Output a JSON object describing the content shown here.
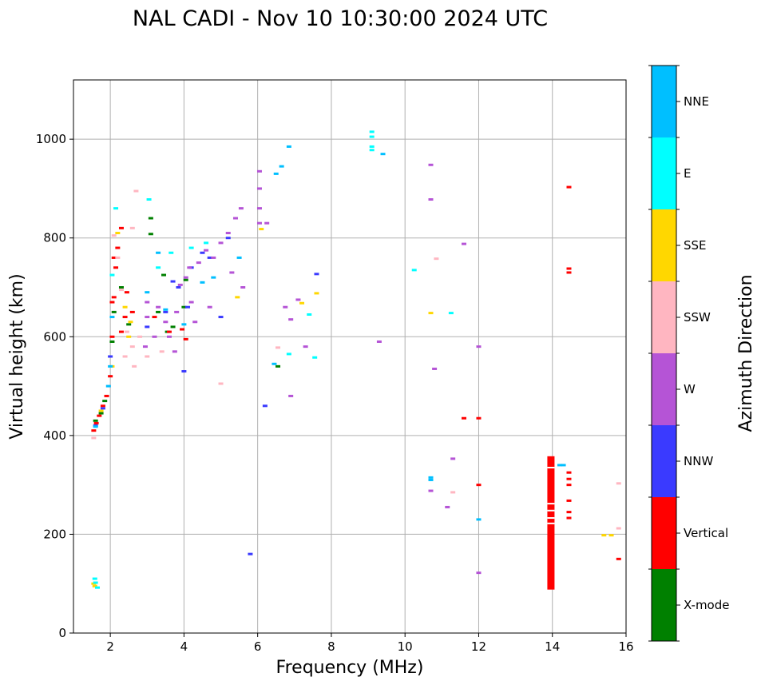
{
  "chart_data": {
    "type": "scatter",
    "title": "NAL CADI - Nov 10 10:30:00 2024 UTC",
    "xlabel": "Frequency (MHz)",
    "ylabel": "Virtual height (km)",
    "xlim": [
      1,
      16
    ],
    "ylim": [
      0,
      1120
    ],
    "xticks": [
      2,
      4,
      6,
      8,
      10,
      12,
      14,
      16
    ],
    "yticks": [
      0,
      200,
      400,
      600,
      800,
      1000
    ],
    "grid": true,
    "colorbar": {
      "label": "Azimuth Direction",
      "categories": [
        {
          "name": "X-mode",
          "color": "#008000"
        },
        {
          "name": "Vertical",
          "color": "#ff0000"
        },
        {
          "name": "NNW",
          "color": "#3a3aff"
        },
        {
          "name": "W",
          "color": "#b554d6"
        },
        {
          "name": "SSW",
          "color": "#ffb6c1"
        },
        {
          "name": "SSE",
          "color": "#ffd700"
        },
        {
          "name": "E",
          "color": "#00ffff"
        },
        {
          "name": "NNE",
          "color": "#00bfff"
        }
      ]
    },
    "series": [
      {
        "name": "X-mode",
        "points": [
          [
            1.6,
            430
          ],
          [
            1.75,
            445
          ],
          [
            1.85,
            470
          ],
          [
            2.05,
            590
          ],
          [
            2.1,
            650
          ],
          [
            2.3,
            700
          ],
          [
            2.5,
            625
          ],
          [
            3.1,
            840
          ],
          [
            3.1,
            808
          ],
          [
            3.3,
            650
          ],
          [
            3.45,
            725
          ],
          [
            3.55,
            610
          ],
          [
            3.7,
            620
          ],
          [
            4.0,
            660
          ],
          [
            4.05,
            715
          ],
          [
            6.55,
            540
          ]
        ]
      },
      {
        "name": "Vertical",
        "points": [
          [
            1.55,
            410
          ],
          [
            1.62,
            425
          ],
          [
            1.7,
            440
          ],
          [
            1.8,
            460
          ],
          [
            1.9,
            480
          ],
          [
            2.0,
            520
          ],
          [
            2.05,
            600
          ],
          [
            2.05,
            670
          ],
          [
            2.1,
            680
          ],
          [
            2.1,
            760
          ],
          [
            2.15,
            740
          ],
          [
            2.2,
            780
          ],
          [
            2.3,
            820
          ],
          [
            2.3,
            610
          ],
          [
            2.4,
            640
          ],
          [
            2.45,
            690
          ],
          [
            2.6,
            650
          ],
          [
            3.2,
            640
          ],
          [
            3.6,
            610
          ],
          [
            3.95,
            615
          ],
          [
            4.05,
            595
          ],
          [
            11.6,
            435
          ],
          [
            12.0,
            435
          ],
          [
            12.0,
            300
          ],
          [
            14.45,
            903
          ],
          [
            14.45,
            738
          ],
          [
            14.45,
            730
          ],
          [
            14.45,
            325
          ],
          [
            14.45,
            312
          ],
          [
            14.45,
            300
          ],
          [
            14.45,
            268
          ],
          [
            14.45,
            245
          ],
          [
            14.45,
            233
          ],
          [
            15.8,
            150
          ]
        ]
      },
      {
        "name": "NNW",
        "points": [
          [
            1.6,
            420
          ],
          [
            1.8,
            455
          ],
          [
            2.0,
            560
          ],
          [
            3.0,
            620
          ],
          [
            3.5,
            650
          ],
          [
            3.7,
            712
          ],
          [
            3.85,
            700
          ],
          [
            4.0,
            530
          ],
          [
            4.1,
            660
          ],
          [
            4.2,
            740
          ],
          [
            4.5,
            770
          ],
          [
            4.7,
            760
          ],
          [
            5.0,
            640
          ],
          [
            5.2,
            800
          ],
          [
            5.8,
            160
          ],
          [
            6.2,
            460
          ],
          [
            7.6,
            727
          ]
        ]
      },
      {
        "name": "W",
        "points": [
          [
            2.95,
            580
          ],
          [
            3.0,
            640
          ],
          [
            3.0,
            670
          ],
          [
            3.2,
            600
          ],
          [
            3.3,
            660
          ],
          [
            3.5,
            630
          ],
          [
            3.6,
            600
          ],
          [
            3.75,
            570
          ],
          [
            3.8,
            650
          ],
          [
            3.9,
            705
          ],
          [
            4.05,
            720
          ],
          [
            4.15,
            740
          ],
          [
            4.2,
            670
          ],
          [
            4.3,
            630
          ],
          [
            4.4,
            750
          ],
          [
            4.6,
            775
          ],
          [
            4.7,
            660
          ],
          [
            4.8,
            760
          ],
          [
            5.0,
            790
          ],
          [
            5.2,
            810
          ],
          [
            5.3,
            730
          ],
          [
            5.4,
            840
          ],
          [
            5.55,
            860
          ],
          [
            5.6,
            700
          ],
          [
            6.05,
            830
          ],
          [
            6.05,
            860
          ],
          [
            6.05,
            900
          ],
          [
            6.05,
            935
          ],
          [
            6.25,
            830
          ],
          [
            6.75,
            660
          ],
          [
            6.9,
            480
          ],
          [
            6.9,
            635
          ],
          [
            7.1,
            675
          ],
          [
            7.3,
            580
          ],
          [
            9.3,
            590
          ],
          [
            10.7,
            948
          ],
          [
            10.7,
            878
          ],
          [
            10.8,
            535
          ],
          [
            10.7,
            288
          ],
          [
            11.15,
            255
          ],
          [
            11.3,
            353
          ],
          [
            11.6,
            788
          ],
          [
            12.0,
            580
          ],
          [
            12.0,
            122
          ]
        ]
      },
      {
        "name": "SSW",
        "points": [
          [
            1.55,
            395
          ],
          [
            1.95,
            500
          ],
          [
            2.1,
            805
          ],
          [
            2.2,
            760
          ],
          [
            2.3,
            695
          ],
          [
            2.4,
            560
          ],
          [
            2.45,
            610
          ],
          [
            2.6,
            820
          ],
          [
            2.6,
            580
          ],
          [
            2.65,
            540
          ],
          [
            2.7,
            895
          ],
          [
            2.8,
            600
          ],
          [
            3.0,
            560
          ],
          [
            3.4,
            570
          ],
          [
            5.0,
            505
          ],
          [
            6.55,
            578
          ],
          [
            10.85,
            758
          ],
          [
            11.3,
            285
          ],
          [
            15.8,
            303
          ],
          [
            15.8,
            212
          ]
        ]
      },
      {
        "name": "SSE",
        "points": [
          [
            1.55,
            100
          ],
          [
            1.58,
            95
          ],
          [
            1.75,
            450
          ],
          [
            2.05,
            540
          ],
          [
            2.2,
            810
          ],
          [
            2.4,
            660
          ],
          [
            2.5,
            600
          ],
          [
            2.55,
            630
          ],
          [
            5.45,
            680
          ],
          [
            6.1,
            818
          ],
          [
            7.2,
            668
          ],
          [
            7.6,
            688
          ],
          [
            10.7,
            648
          ],
          [
            15.4,
            198
          ],
          [
            15.6,
            198
          ]
        ]
      },
      {
        "name": "E",
        "points": [
          [
            1.58,
            110
          ],
          [
            1.6,
            102
          ],
          [
            1.65,
            92
          ],
          [
            2.05,
            725
          ],
          [
            2.15,
            860
          ],
          [
            3.05,
            878
          ],
          [
            3.3,
            740
          ],
          [
            3.65,
            770
          ],
          [
            4.2,
            780
          ],
          [
            4.6,
            790
          ],
          [
            6.85,
            565
          ],
          [
            7.4,
            645
          ],
          [
            7.55,
            558
          ],
          [
            9.1,
            1015
          ],
          [
            9.1,
            1005
          ],
          [
            9.1,
            985
          ],
          [
            9.1,
            978
          ],
          [
            10.25,
            735
          ],
          [
            11.25,
            648
          ]
        ]
      },
      {
        "name": "NNE",
        "points": [
          [
            1.6,
            418
          ],
          [
            1.95,
            500
          ],
          [
            2.0,
            540
          ],
          [
            2.05,
            640
          ],
          [
            3.0,
            690
          ],
          [
            3.3,
            770
          ],
          [
            3.5,
            655
          ],
          [
            4.0,
            625
          ],
          [
            4.5,
            710
          ],
          [
            4.8,
            720
          ],
          [
            5.5,
            760
          ],
          [
            6.45,
            545
          ],
          [
            6.5,
            930
          ],
          [
            6.65,
            945
          ],
          [
            6.85,
            985
          ],
          [
            9.4,
            970
          ],
          [
            10.7,
            315
          ],
          [
            10.7,
            310
          ],
          [
            12.0,
            230
          ],
          [
            14.2,
            340
          ],
          [
            14.3,
            340
          ]
        ]
      }
    ],
    "vertical_band": {
      "name": "Vertical",
      "x": 13.95,
      "y_range": [
        88,
        358
      ],
      "gaps": [
        335,
        262,
        248,
        233,
        222
      ]
    }
  }
}
